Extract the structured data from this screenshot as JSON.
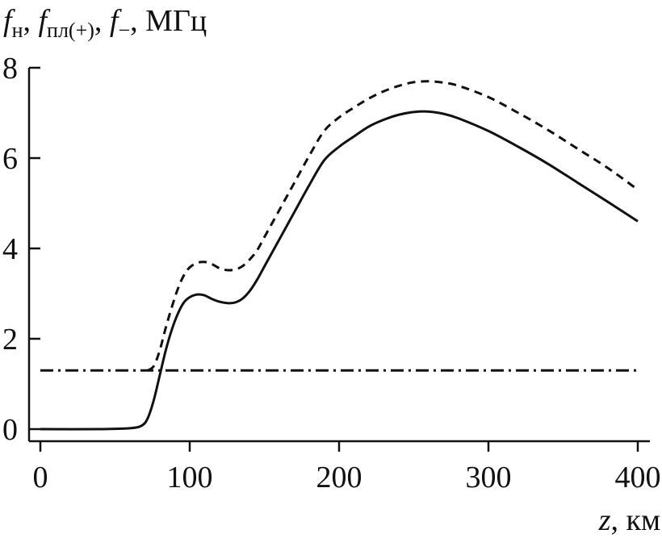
{
  "chart_data": {
    "type": "line",
    "ylabel": {
      "f1": "f",
      "f1_sub": "н",
      "sep1": ", ",
      "f2": "f",
      "f2_sub": "пл(+)",
      "sep2": ", ",
      "f3": "f",
      "f3_sub": "−",
      "unit": ", МГц"
    },
    "xlabel": {
      "var": "z",
      "unit": ", км"
    },
    "xlim": [
      0,
      400
    ],
    "ylim": [
      0,
      8
    ],
    "xticks": [
      "0",
      "100",
      "200",
      "300",
      "400"
    ],
    "yticks": [
      "0",
      "2",
      "4",
      "6",
      "8"
    ],
    "grid": false,
    "legend": "none",
    "series": [
      {
        "style": "solid",
        "color": "#111111",
        "x": [
          0,
          40,
          60,
          68,
          72,
          76,
          80,
          84,
          88,
          92,
          96,
          100,
          105,
          110,
          115,
          120,
          125,
          130,
          135,
          140,
          145,
          150,
          160,
          170,
          180,
          190,
          200,
          210,
          220,
          230,
          240,
          250,
          260,
          270,
          280,
          300,
          320,
          340,
          360,
          380,
          400
        ],
        "y": [
          0,
          0,
          0.02,
          0.08,
          0.25,
          0.65,
          1.2,
          1.75,
          2.2,
          2.55,
          2.8,
          2.92,
          2.98,
          2.96,
          2.88,
          2.82,
          2.79,
          2.8,
          2.88,
          3.05,
          3.3,
          3.6,
          4.2,
          4.8,
          5.4,
          5.95,
          6.25,
          6.48,
          6.7,
          6.85,
          6.96,
          7.02,
          7.03,
          6.98,
          6.88,
          6.6,
          6.25,
          5.87,
          5.45,
          5.03,
          4.6
        ]
      },
      {
        "style": "dashed",
        "color": "#111111",
        "x": [
          72,
          76,
          80,
          84,
          88,
          92,
          96,
          100,
          105,
          110,
          115,
          120,
          125,
          130,
          135,
          140,
          145,
          150,
          160,
          170,
          180,
          190,
          200,
          210,
          220,
          230,
          240,
          250,
          260,
          270,
          280,
          300,
          320,
          340,
          360,
          380,
          400
        ],
        "y": [
          1.3,
          1.4,
          1.75,
          2.25,
          2.7,
          3.1,
          3.4,
          3.58,
          3.68,
          3.7,
          3.65,
          3.56,
          3.52,
          3.53,
          3.6,
          3.75,
          3.95,
          4.25,
          4.85,
          5.45,
          6.05,
          6.6,
          6.9,
          7.12,
          7.32,
          7.48,
          7.6,
          7.68,
          7.7,
          7.67,
          7.6,
          7.35,
          7.0,
          6.62,
          6.2,
          5.78,
          5.3
        ]
      },
      {
        "style": "dashdot",
        "color": "#111111",
        "x": [
          0,
          400
        ],
        "y": [
          1.3,
          1.3
        ]
      }
    ]
  }
}
